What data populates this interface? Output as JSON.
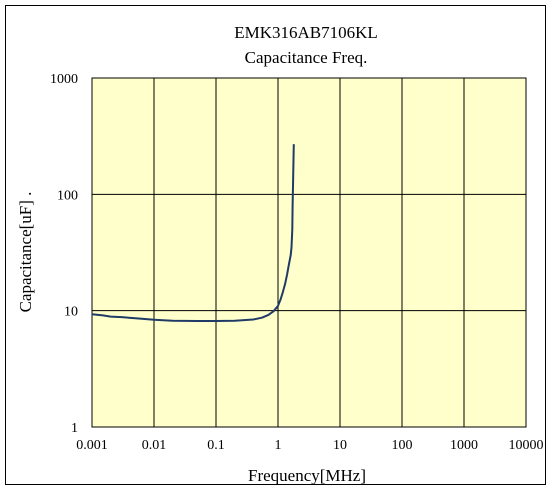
{
  "chart_data": {
    "type": "line",
    "title": "EMK316AB7106KL",
    "subtitle": "Capacitance Freq.",
    "xlabel": "Frequency[MHz]",
    "ylabel": "Capacitance[uF] .",
    "x_scale": "log",
    "y_scale": "log",
    "xlim": [
      0.001,
      10000
    ],
    "ylim": [
      1,
      1000
    ],
    "x_ticks": [
      0.001,
      0.01,
      0.1,
      1,
      10,
      100,
      1000,
      10000
    ],
    "x_tick_labels": [
      "0.001",
      "0.01",
      "0.1",
      "1",
      "10",
      "100",
      "1000",
      "10000"
    ],
    "y_ticks": [
      1,
      10,
      100,
      1000
    ],
    "y_tick_labels": [
      "1",
      "10",
      "100",
      "1000"
    ],
    "grid": true,
    "legend": "none",
    "plot_background": "#ffffcc",
    "series": [
      {
        "color": "#1f3a66",
        "x": [
          0.001,
          0.0015,
          0.002,
          0.003,
          0.005,
          0.008,
          0.01,
          0.02,
          0.05,
          0.1,
          0.2,
          0.4,
          0.55,
          0.7,
          0.85,
          1.0,
          1.1,
          1.2,
          1.3,
          1.4,
          1.5,
          1.6,
          1.65,
          1.7,
          1.72,
          1.75,
          1.78,
          1.8
        ],
        "y": [
          9.3,
          9.1,
          8.9,
          8.8,
          8.6,
          8.45,
          8.35,
          8.2,
          8.15,
          8.15,
          8.2,
          8.4,
          8.7,
          9.2,
          9.9,
          11.0,
          12.5,
          14.5,
          17.0,
          20.5,
          25.0,
          30.0,
          35.0,
          50.0,
          80.0,
          130.0,
          200.0,
          270.0
        ]
      }
    ]
  }
}
